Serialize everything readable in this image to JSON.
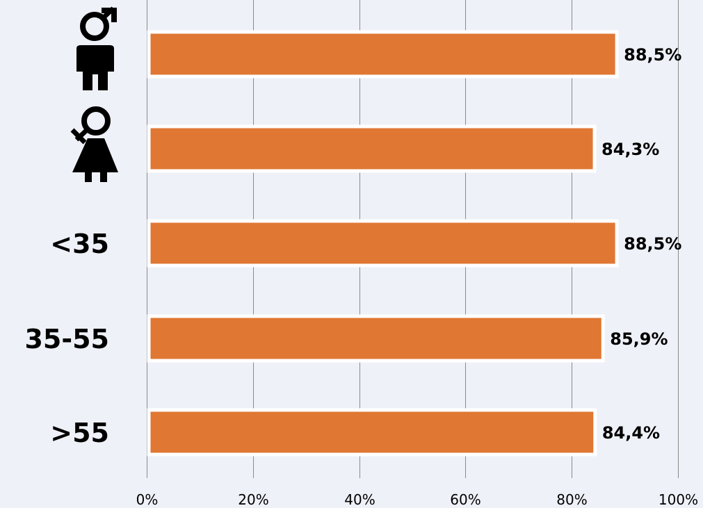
{
  "chart_data": {
    "type": "bar",
    "orientation": "horizontal",
    "categories": [
      {
        "label": "",
        "icon": "male-person-icon"
      },
      {
        "label": "",
        "icon": "female-person-icon"
      },
      {
        "label": "<35",
        "icon": ""
      },
      {
        "label": "35-55",
        "icon": ""
      },
      {
        "label": ">55",
        "icon": ""
      }
    ],
    "values": [
      88.5,
      84.3,
      88.5,
      85.9,
      84.4
    ],
    "value_labels": [
      "88,5%",
      "84,3%",
      "88,5%",
      "85,9%",
      "84,4%"
    ],
    "xlim": [
      0,
      100
    ],
    "ticks": [
      0,
      20,
      40,
      60,
      80,
      100
    ],
    "tick_labels": [
      "0%",
      "20%",
      "40%",
      "60%",
      "80%",
      "100%"
    ],
    "grid": true,
    "title": "",
    "xlabel": "",
    "ylabel": "",
    "colors": {
      "bar": "#e07733",
      "bar_outline": "#ffffff",
      "background": "#eef1f7",
      "grid": "#8a8a8a"
    }
  }
}
